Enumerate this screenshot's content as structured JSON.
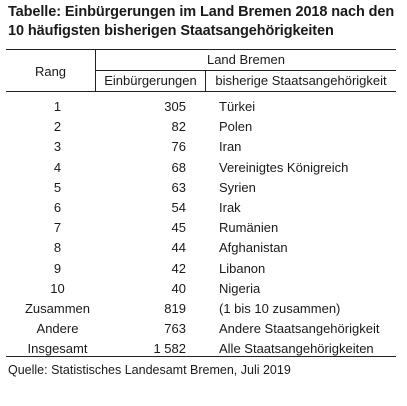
{
  "title": "Tabelle: Einbürgerungen im Land Bremen 2018 nach den 10 häufigsten bisherigen Staatsangehörigkeiten",
  "header": {
    "rank": "Rang",
    "group": "Land Bremen",
    "count": "Einbürgerungen",
    "nationality": "bisherige Staatsangehörigkeit"
  },
  "rows": [
    {
      "rank": "1",
      "count": "305",
      "nationality": "Türkei"
    },
    {
      "rank": "2",
      "count": "82",
      "nationality": "Polen"
    },
    {
      "rank": "3",
      "count": "76",
      "nationality": "Iran"
    },
    {
      "rank": "4",
      "count": "68",
      "nationality": "Vereinigtes Königreich"
    },
    {
      "rank": "5",
      "count": "63",
      "nationality": "Syrien"
    },
    {
      "rank": "6",
      "count": "54",
      "nationality": "Irak"
    },
    {
      "rank": "7",
      "count": "45",
      "nationality": "Rumänien"
    },
    {
      "rank": "8",
      "count": "44",
      "nationality": "Afghanistan"
    },
    {
      "rank": "9",
      "count": "42",
      "nationality": "Libanon"
    },
    {
      "rank": "10",
      "count": "40",
      "nationality": "Nigeria"
    },
    {
      "rank": "Zusammen",
      "count": "819",
      "nationality": "(1 bis 10 zusammen)"
    },
    {
      "rank": "Andere",
      "count": "763",
      "nationality": "Andere Staatsangehörigkeit"
    },
    {
      "rank": "Insgesamt",
      "count": "1 582",
      "nationality": "Alle Staatsangehörigkeiten"
    }
  ],
  "source": "Quelle: Statistisches Landesamt Bremen, Juli 2019"
}
